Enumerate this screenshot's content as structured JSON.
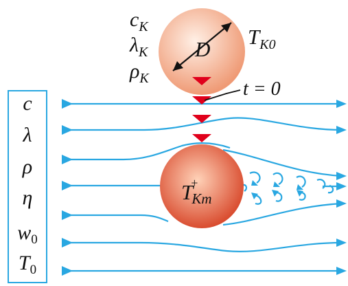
{
  "colors": {
    "flow": "#29a7e1",
    "marker": "#e0001b",
    "sphere_light_center": "#fff0e6",
    "sphere_light_edge": "#ef9a75",
    "sphere_dark_center": "#ffd2b8",
    "sphere_dark_edge": "#d8482b",
    "ink": "#111111"
  },
  "sphere_top": {
    "props": [
      {
        "base": "c",
        "sub": "K"
      },
      {
        "base": "λ",
        "sub": "K"
      },
      {
        "base": "ρ",
        "sub": "K"
      }
    ],
    "diameter": "D",
    "temperature": {
      "base": "T",
      "sub": "K0"
    }
  },
  "time_label": "t = 0",
  "fluid_props": [
    {
      "base": "c",
      "sub": ""
    },
    {
      "base": "λ",
      "sub": ""
    },
    {
      "base": "ρ",
      "sub": ""
    },
    {
      "base": "η",
      "sub": ""
    },
    {
      "base": "w",
      "sub": "0"
    },
    {
      "base": "T",
      "sub": "0"
    }
  ],
  "sphere_bottom": {
    "base": "T",
    "sup": "+",
    "sub": "Km"
  }
}
